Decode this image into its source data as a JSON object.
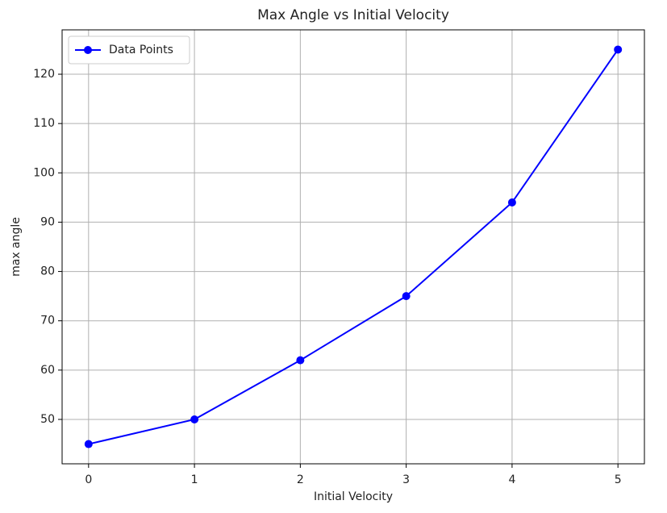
{
  "chart_data": {
    "type": "line",
    "title": "Max Angle vs Initial Velocity",
    "x_label": "Initial Velocity",
    "y_label": "max angle",
    "x": [
      0,
      1,
      2,
      3,
      4,
      5
    ],
    "series": [
      {
        "name": "Data Points",
        "color": "#0000ff",
        "values": [
          45,
          50,
          62,
          75,
          94,
          125
        ],
        "marker": "o"
      }
    ],
    "xlim": [
      -0.25,
      5.25
    ],
    "ylim": [
      41,
      129
    ],
    "xticks": [
      0,
      1,
      2,
      3,
      4,
      5
    ],
    "yticks": [
      50,
      60,
      70,
      80,
      90,
      100,
      110,
      120
    ],
    "grid": true,
    "legend": "upper left"
  }
}
